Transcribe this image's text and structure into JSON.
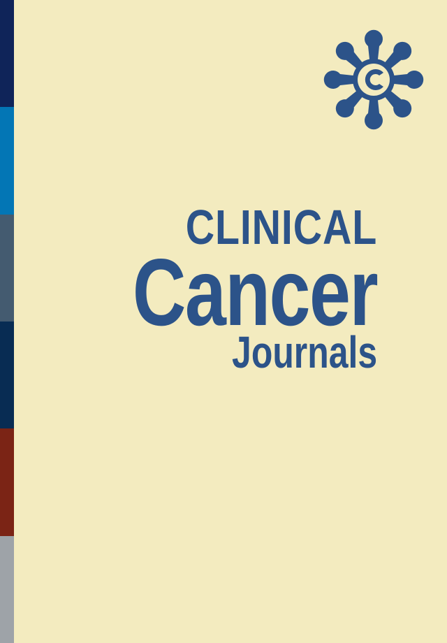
{
  "cover": {
    "title_line1": "CLINICAL",
    "title_line2": "Cancer",
    "title_line3": "Journals",
    "logo_icon": "flower-c-logo-icon",
    "background_color": "#f3ebbf",
    "text_color": "#2c5389",
    "spine_colors": [
      "#0f2459",
      "#0376b5",
      "#445b70",
      "#082c53",
      "#7b2415",
      "#9ea3a8"
    ]
  }
}
